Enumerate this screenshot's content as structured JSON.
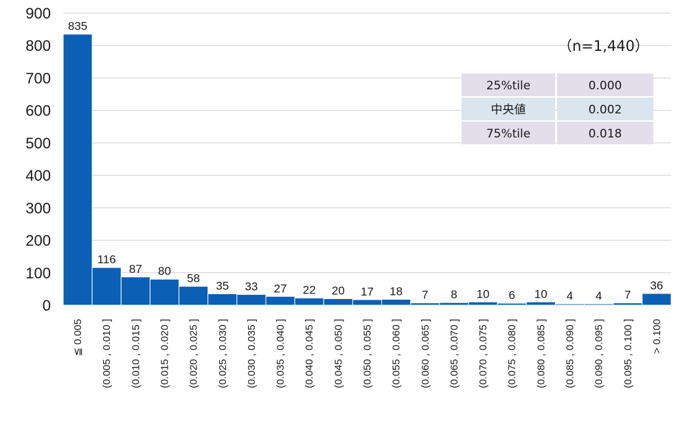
{
  "chart_data": {
    "type": "bar",
    "categories": [
      "≦ 0.005",
      "(0.005 , 0.010 ]",
      "(0.010 , 0.015 ]",
      "(0.015 , 0.020 ]",
      "(0.020 , 0.025 ]",
      "(0.025 , 0.030 ]",
      "(0.030 , 0.035 ]",
      "(0.035 , 0.040 ]",
      "(0.040 , 0.045 ]",
      "(0.045 , 0.050 ]",
      "(0.050 , 0.055 ]",
      "(0.055 , 0.060 ]",
      "(0.060 , 0.065 ]",
      "(0.065 , 0.070 ]",
      "(0.070 , 0.075 ]",
      "(0.075 , 0.080 ]",
      "(0.080 , 0.085 ]",
      "(0.085 , 0.090 ]",
      "(0.090 , 0.095 ]",
      "(0.095 , 0.100 ]",
      "> 0.100"
    ],
    "values": [
      835,
      116,
      87,
      80,
      58,
      35,
      33,
      27,
      22,
      20,
      17,
      18,
      7,
      8,
      10,
      6,
      10,
      4,
      4,
      7,
      36
    ],
    "ylim": [
      0,
      900
    ],
    "yticks": [
      0,
      100,
      200,
      300,
      400,
      500,
      600,
      700,
      800,
      900
    ],
    "grid": true,
    "bar_color": "#0b5fb4",
    "sample_note": "（n=1,440）",
    "stats_table": [
      {
        "label": "25%tile",
        "value": "0.000"
      },
      {
        "label": "中央値",
        "value": "0.002"
      },
      {
        "label": "75%tile",
        "value": "0.018"
      }
    ],
    "stats_colors": {
      "row_odd": "#e2deea",
      "row_even": "#dae5ee"
    }
  }
}
